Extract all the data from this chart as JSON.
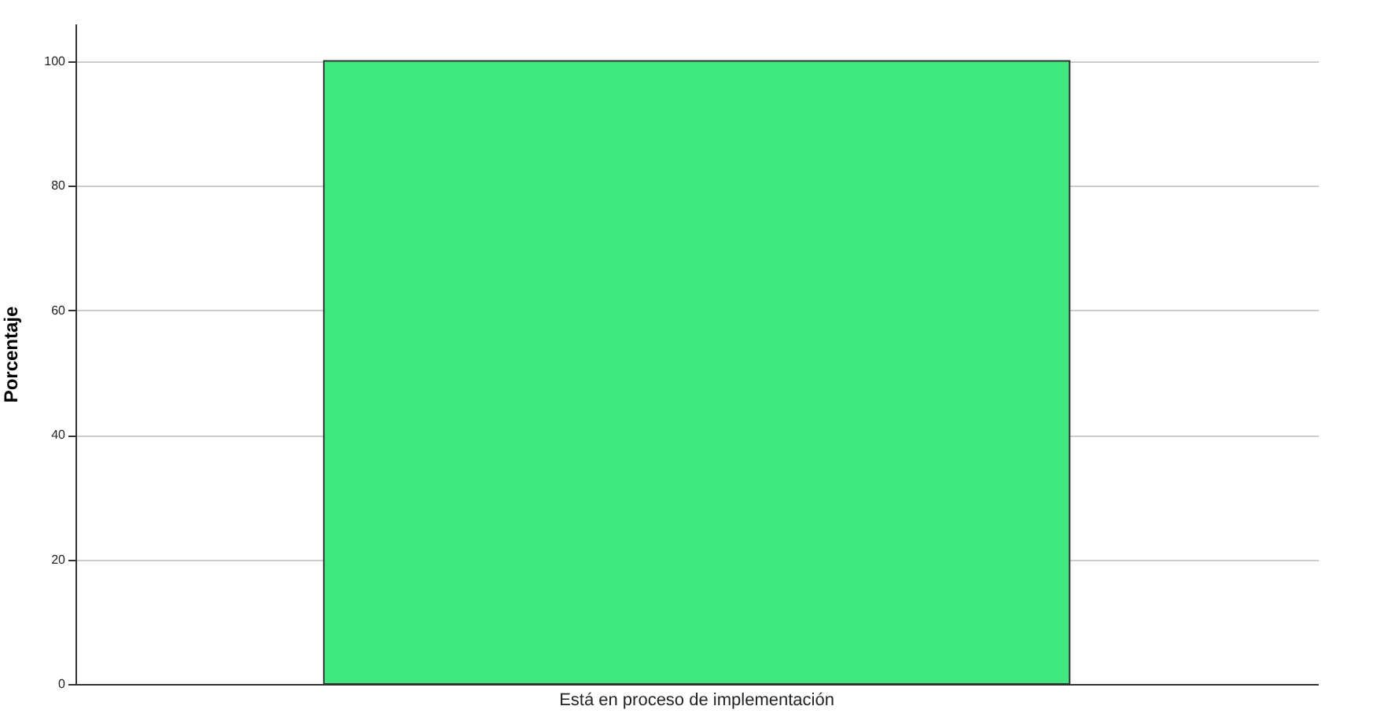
{
  "chart_data": {
    "type": "bar",
    "ylabel": "Porcentaje",
    "categories": [
      "Está en proceso de implementación"
    ],
    "values": [
      100
    ],
    "color": "#40e980",
    "ylim": [
      0,
      106
    ],
    "yticks": [
      0,
      20,
      40,
      60,
      80,
      100
    ],
    "grid": "y"
  }
}
